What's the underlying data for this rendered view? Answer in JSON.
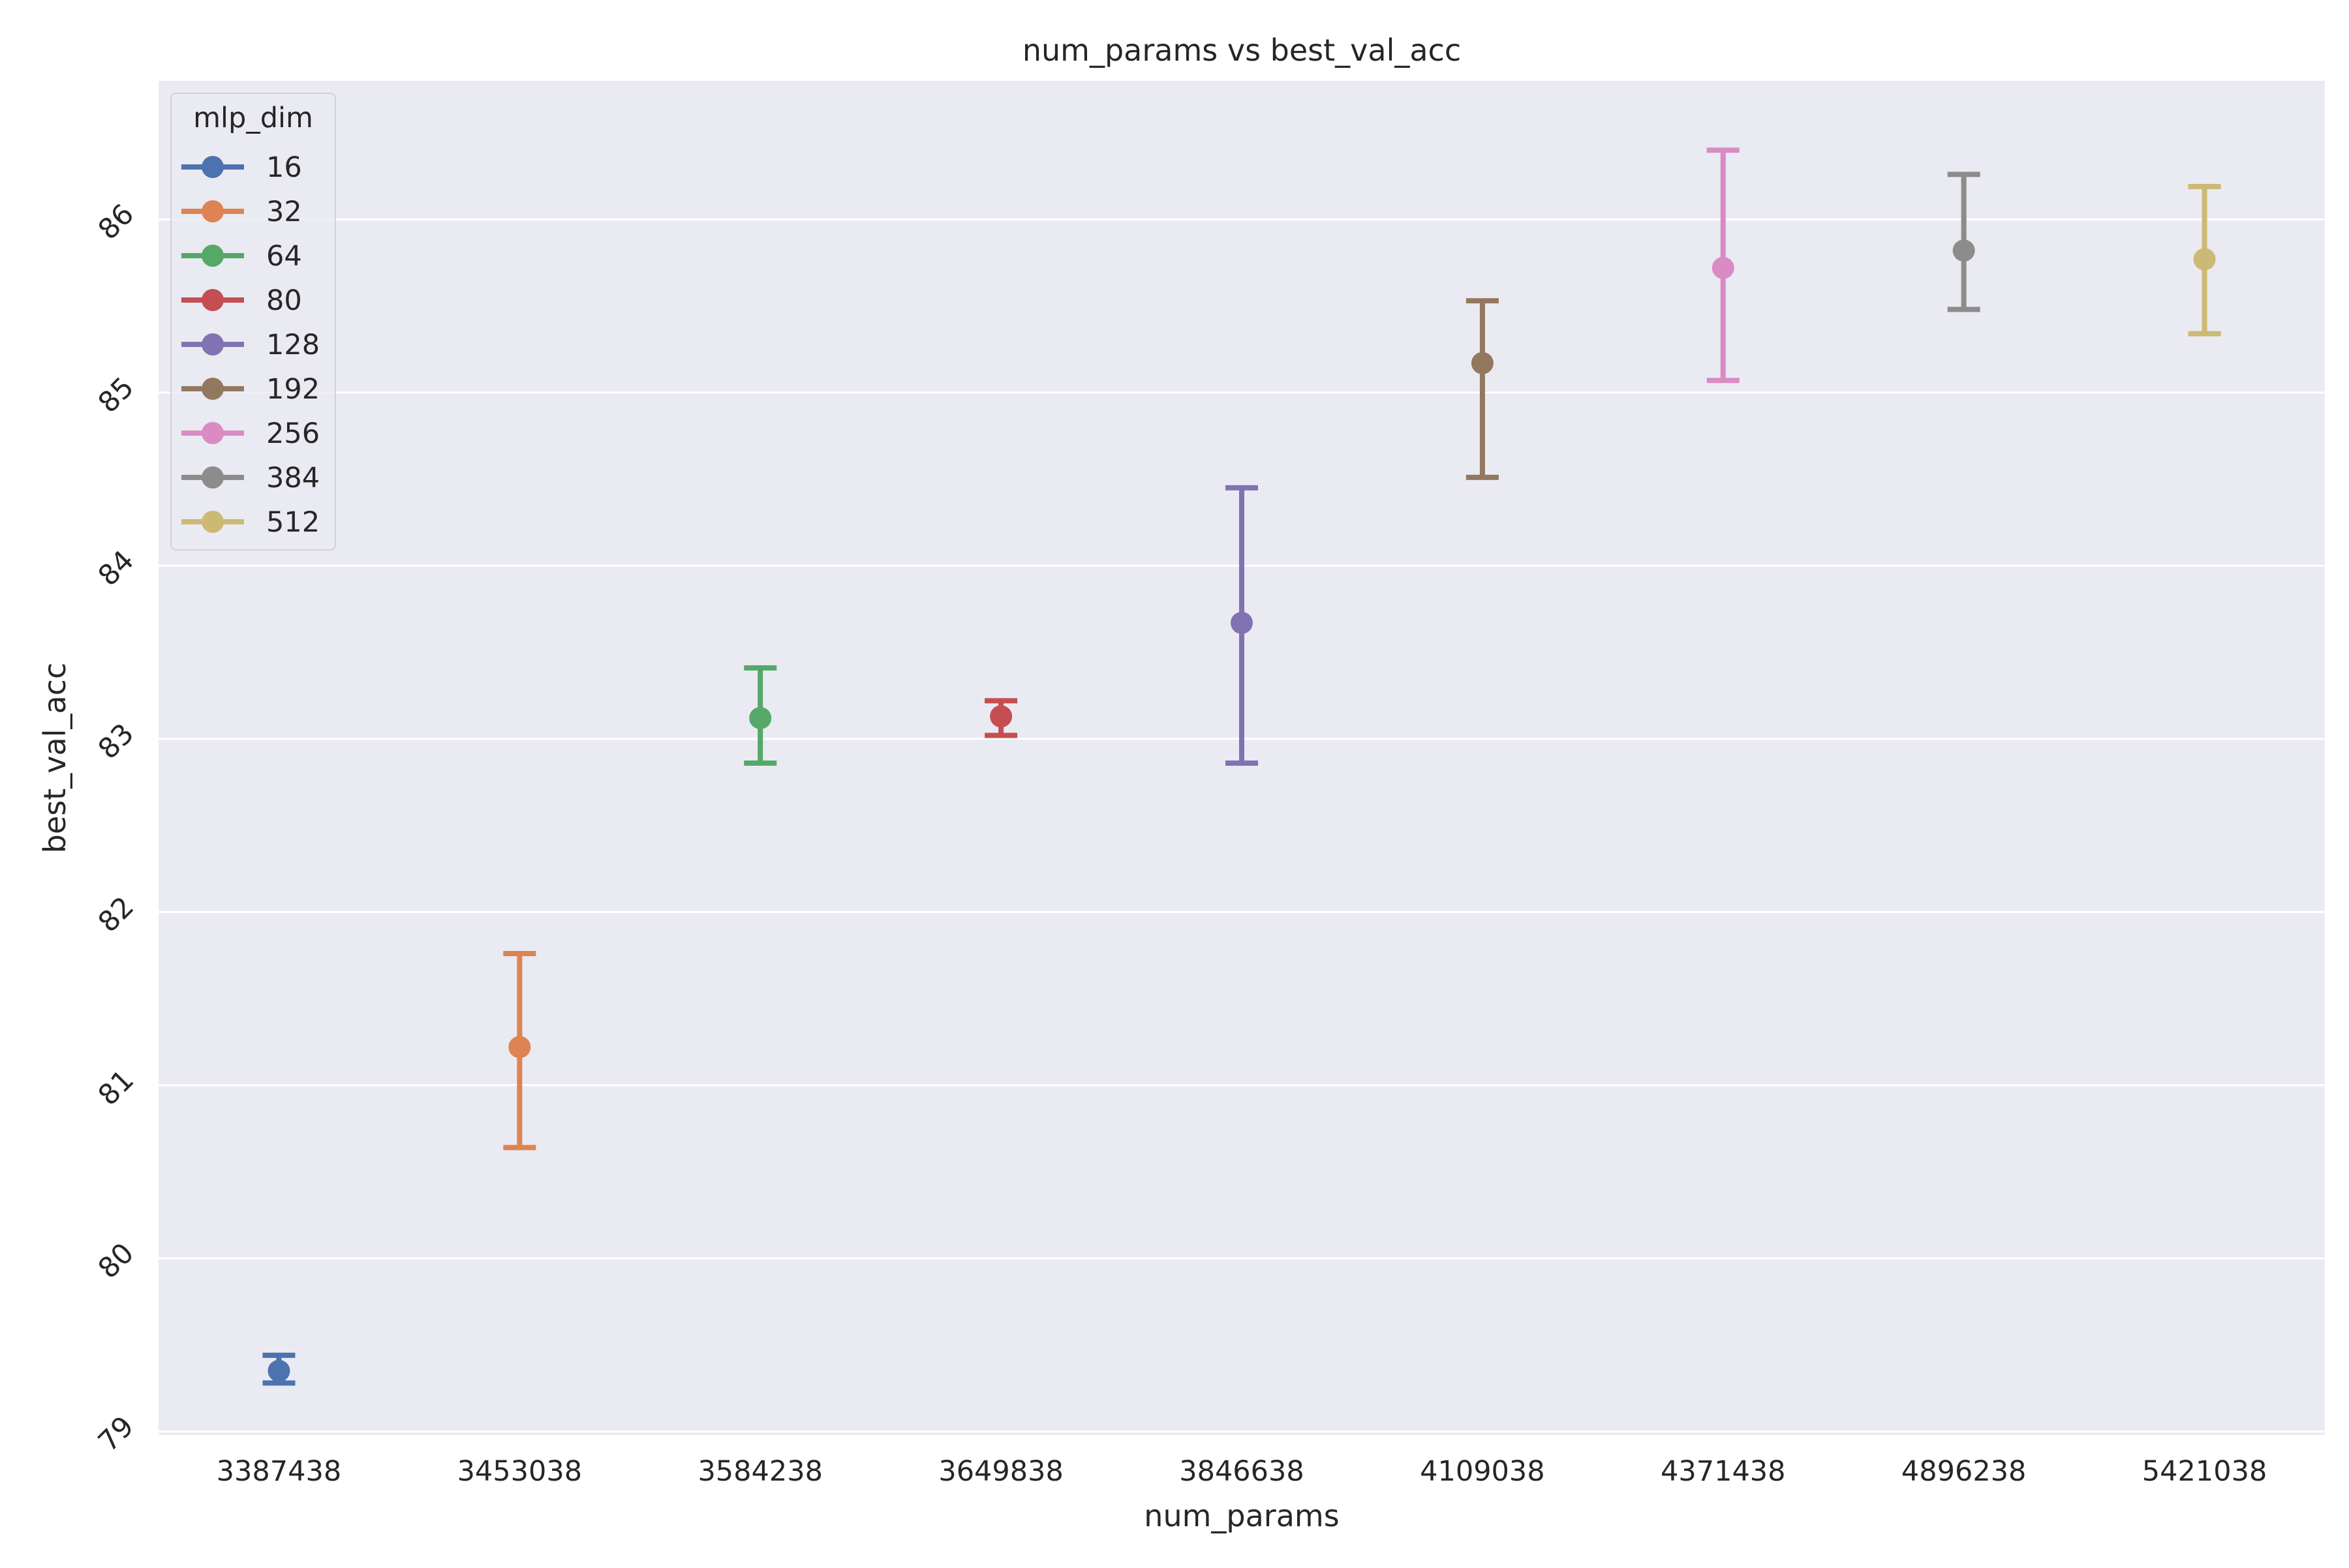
{
  "chart_data": {
    "type": "scatter",
    "title": "num_params vs best_val_acc",
    "xlabel": "num_params",
    "ylabel": "best_val_acc",
    "categories": [
      "3387438",
      "3453038",
      "3584238",
      "3649838",
      "3846638",
      "4109038",
      "4371438",
      "4896238",
      "5421038"
    ],
    "y_ticks": [
      "79",
      "80",
      "81",
      "82",
      "83",
      "84",
      "85",
      "86"
    ],
    "ylim": [
      78.98,
      86.8
    ],
    "grid": true,
    "legend": {
      "title": "mlp_dim",
      "placement": "top-left"
    },
    "series": [
      {
        "name": "16",
        "color": "#4c72b0",
        "x": "3387438",
        "y": 79.35,
        "err_low": 79.28,
        "err_high": 79.44
      },
      {
        "name": "32",
        "color": "#dd8452",
        "x": "3453038",
        "y": 81.22,
        "err_low": 80.64,
        "err_high": 81.76
      },
      {
        "name": "64",
        "color": "#55a868",
        "x": "3584238",
        "y": 83.12,
        "err_low": 82.86,
        "err_high": 83.41
      },
      {
        "name": "80",
        "color": "#c44e52",
        "x": "3649838",
        "y": 83.13,
        "err_low": 83.02,
        "err_high": 83.22
      },
      {
        "name": "128",
        "color": "#8172b3",
        "x": "3846638",
        "y": 83.67,
        "err_low": 82.86,
        "err_high": 84.45
      },
      {
        "name": "192",
        "color": "#937860",
        "x": "4109038",
        "y": 85.17,
        "err_low": 84.51,
        "err_high": 85.53
      },
      {
        "name": "256",
        "color": "#da8bc3",
        "x": "4371438",
        "y": 85.72,
        "err_low": 85.07,
        "err_high": 86.4
      },
      {
        "name": "384",
        "color": "#8c8c8c",
        "x": "4896238",
        "y": 85.82,
        "err_low": 85.48,
        "err_high": 86.26
      },
      {
        "name": "512",
        "color": "#ccb974",
        "x": "5421038",
        "y": 85.77,
        "err_low": 85.34,
        "err_high": 86.19
      }
    ]
  }
}
